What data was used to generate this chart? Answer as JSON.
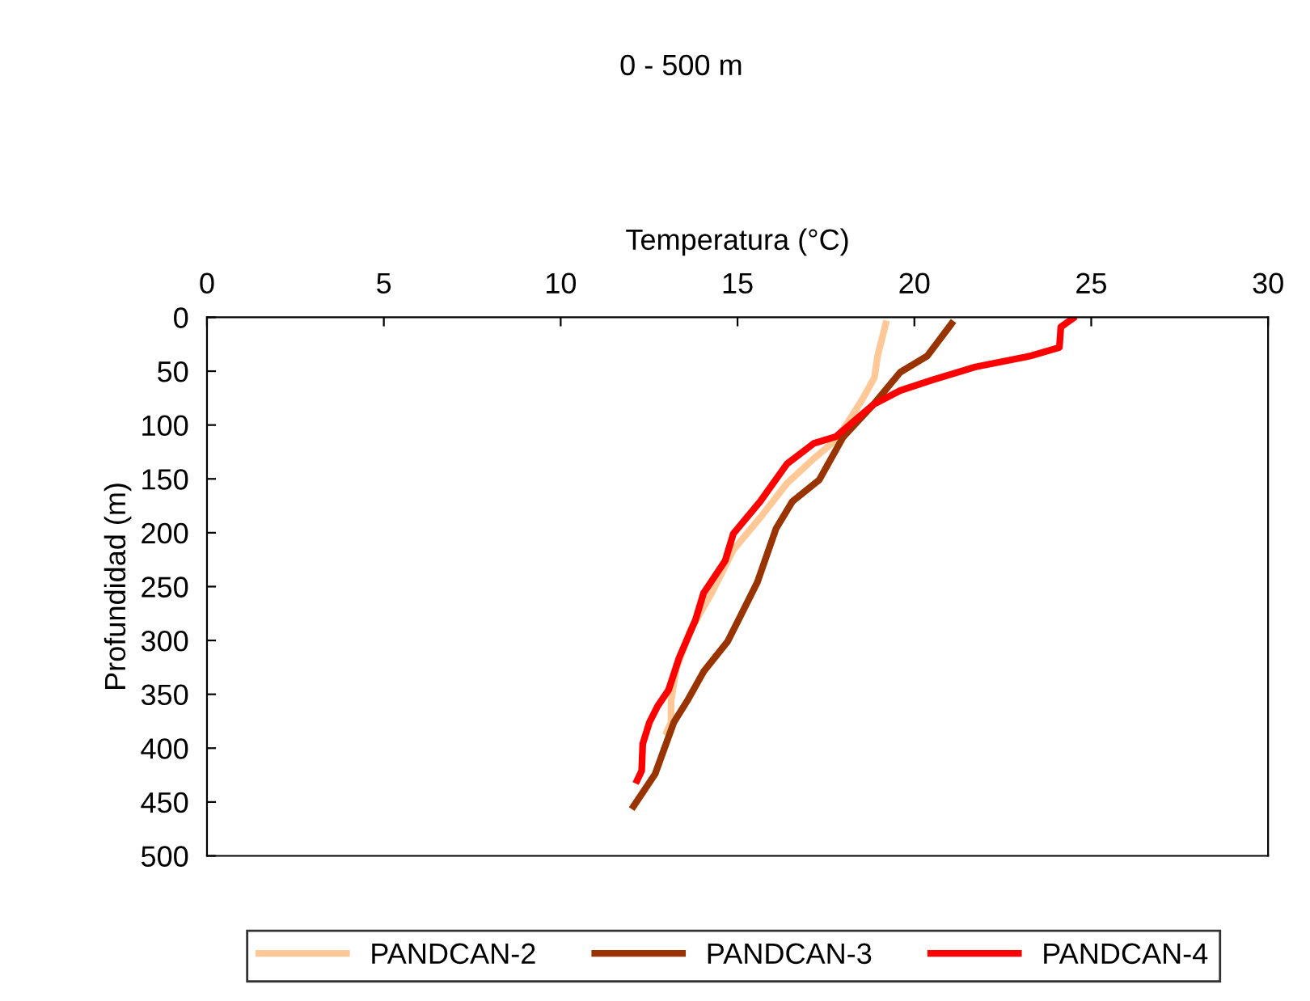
{
  "chart_data": {
    "type": "line",
    "title": "0 - 500 m",
    "xlabel": "Temperatura (°C)",
    "ylabel": "Profundidad (m)",
    "xlim": [
      0,
      30
    ],
    "xticks": [
      0,
      5,
      10,
      15,
      20,
      25,
      30
    ],
    "ylim": [
      500,
      0
    ],
    "yticks": [
      0,
      50,
      100,
      150,
      200,
      250,
      300,
      350,
      400,
      450,
      500
    ],
    "grid": false,
    "legend": "bottom",
    "marker": "none",
    "line_style": "solid",
    "series": [
      {
        "name": "PANDCAN-2",
        "color": "#ffc896",
        "x": [
          19.19,
          18.96,
          18.87,
          18.53,
          18.15,
          17.77,
          17.16,
          16.4,
          15.64,
          14.88,
          14.27,
          13.66,
          13.27,
          13.12,
          13.12,
          13.0
        ],
        "values": [
          6,
          36,
          56,
          76,
          96,
          114,
          131,
          154,
          186,
          216,
          256,
          291,
          326,
          356,
          376,
          385
        ]
      },
      {
        "name": "PANDCAN-3",
        "color": "#993300",
        "x": [
          21.05,
          20.36,
          19.6,
          18.84,
          17.99,
          17.31,
          16.55,
          16.09,
          15.56,
          15.18,
          14.72,
          14.04,
          13.58,
          13.2,
          12.67,
          12.06
        ],
        "values": [
          6,
          36,
          51,
          81,
          111,
          151,
          171,
          196,
          246,
          271,
          301,
          329,
          356,
          376,
          424,
          454
        ]
      },
      {
        "name": "PANDCAN-4",
        "color": "#ff0000",
        "x": [
          24.48,
          24.14,
          24.1,
          23.26,
          21.73,
          20.52,
          19.6,
          18.84,
          17.77,
          17.16,
          16.4,
          15.64,
          14.88,
          14.65,
          14.04,
          13.81,
          13.35,
          13.05,
          12.74,
          12.51,
          12.32,
          12.29,
          12.16
        ],
        "values": [
          1,
          9,
          28,
          36,
          46,
          58,
          68,
          81,
          111,
          117,
          136,
          171,
          201,
          226,
          256,
          281,
          316,
          346,
          361,
          376,
          396,
          421,
          430
        ]
      }
    ]
  }
}
